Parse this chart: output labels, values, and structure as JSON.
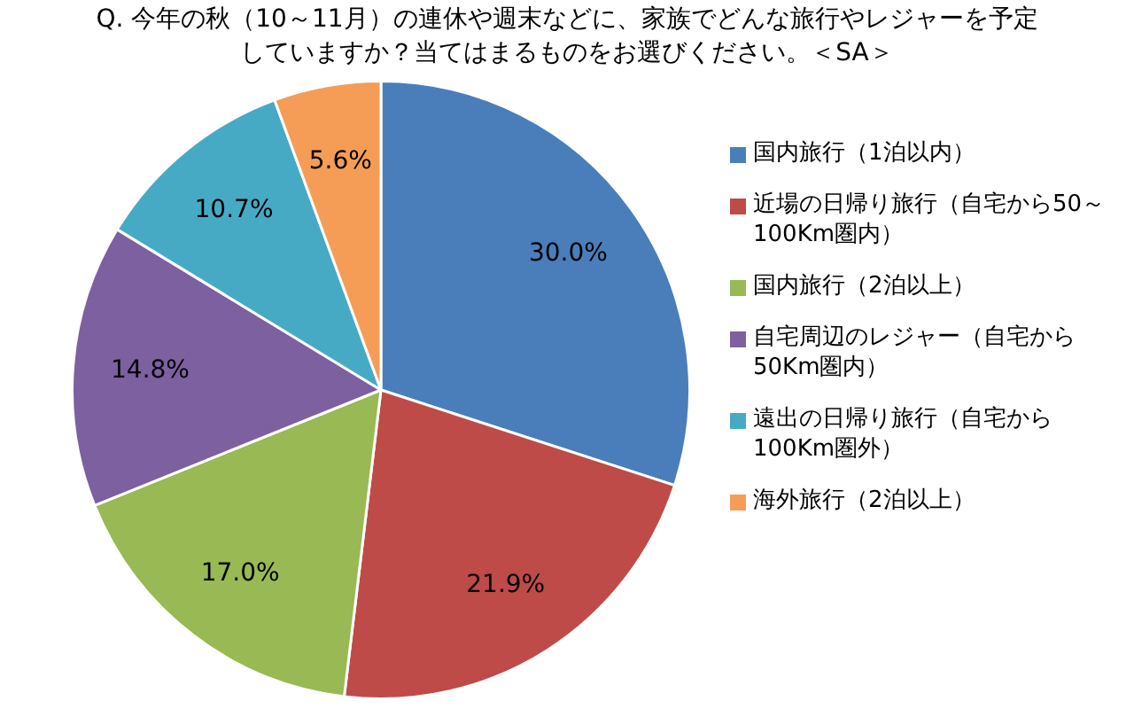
{
  "chart_data": {
    "type": "pie",
    "title": "Q. 今年の秋（10～11月）の連休や週末などに、家族でどんな旅行やレジャーを予定していますか？当てはまるものをお選びください。＜SA＞",
    "categories": [
      "国内旅行（1泊以内）",
      "近場の日帰り旅行（自宅から50～100Km圏内）",
      "国内旅行（2泊以上）",
      "自宅周辺のレジャー（自宅から50Km圏内）",
      "遠出の日帰り旅行（自宅から100Km圏外）",
      "海外旅行（2泊以上）"
    ],
    "values": [
      30.0,
      21.9,
      17.0,
      14.8,
      10.7,
      5.6
    ],
    "colors": [
      "#4a7ebb",
      "#be4b48",
      "#98b954",
      "#7d60a0",
      "#46aac5",
      "#f59d56"
    ],
    "value_labels": [
      "30.0%",
      "21.9%",
      "17.0%",
      "14.8%",
      "10.7%",
      "5.6%"
    ],
    "legend": "right"
  }
}
